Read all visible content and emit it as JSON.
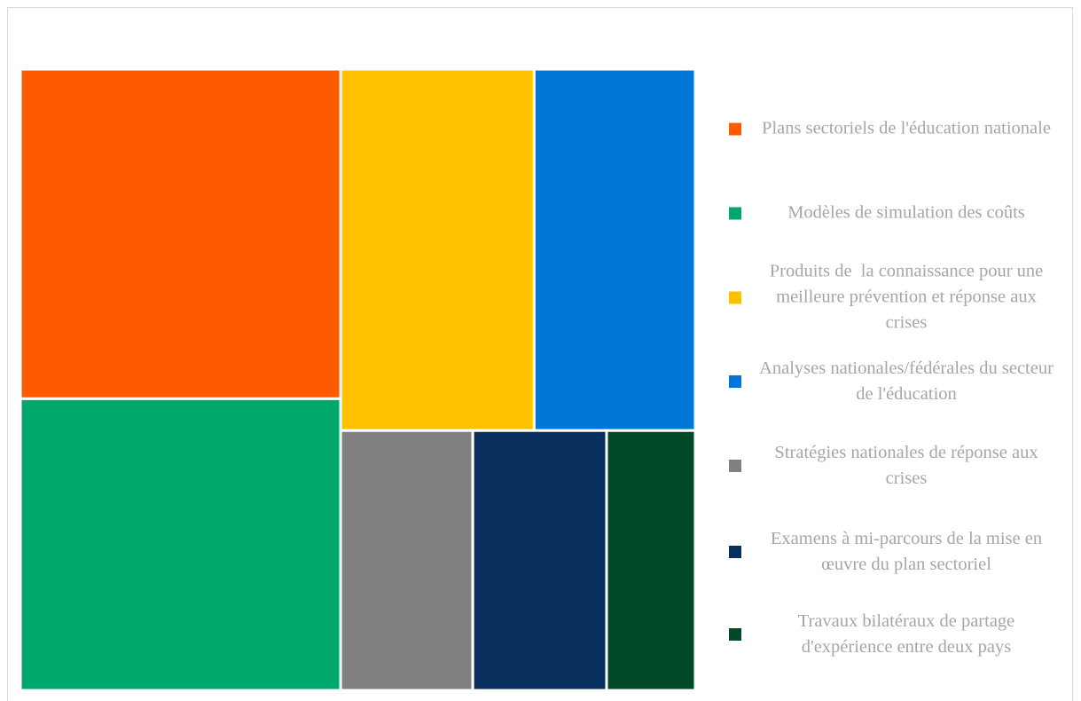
{
  "chart_data": {
    "type": "treemap",
    "series": [
      {
        "name": "Plans sectoriels de l'éducation nationale",
        "color": "#ff5a00",
        "values": [
          25.2
        ]
      },
      {
        "name": "Modèles de simulation des coûts",
        "color": "#00a86b",
        "values": [
          22.3
        ]
      },
      {
        "name": "Produits de  la connaissance pour une meilleure prévention et réponse aux crises",
        "color": "#ffc000",
        "values": [
          16.7
        ]
      },
      {
        "name": "Analyses nationales/fédérales du secteur de l'éducation",
        "color": "#0076d6",
        "values": [
          13.9
        ]
      },
      {
        "name": "Stratégies nationales de réponse aux crises",
        "color": "#808080",
        "values": [
          8.2
        ]
      },
      {
        "name": "Examens à mi-parcours de la mise en œuvre du plan sectoriel",
        "color": "#072e5c",
        "values": [
          8.3
        ]
      },
      {
        "name": "Travaux bilatéraux de partage d'expérience entre deux pays",
        "color": "#004a2a",
        "values": [
          5.5
        ]
      }
    ],
    "legend": "right"
  }
}
